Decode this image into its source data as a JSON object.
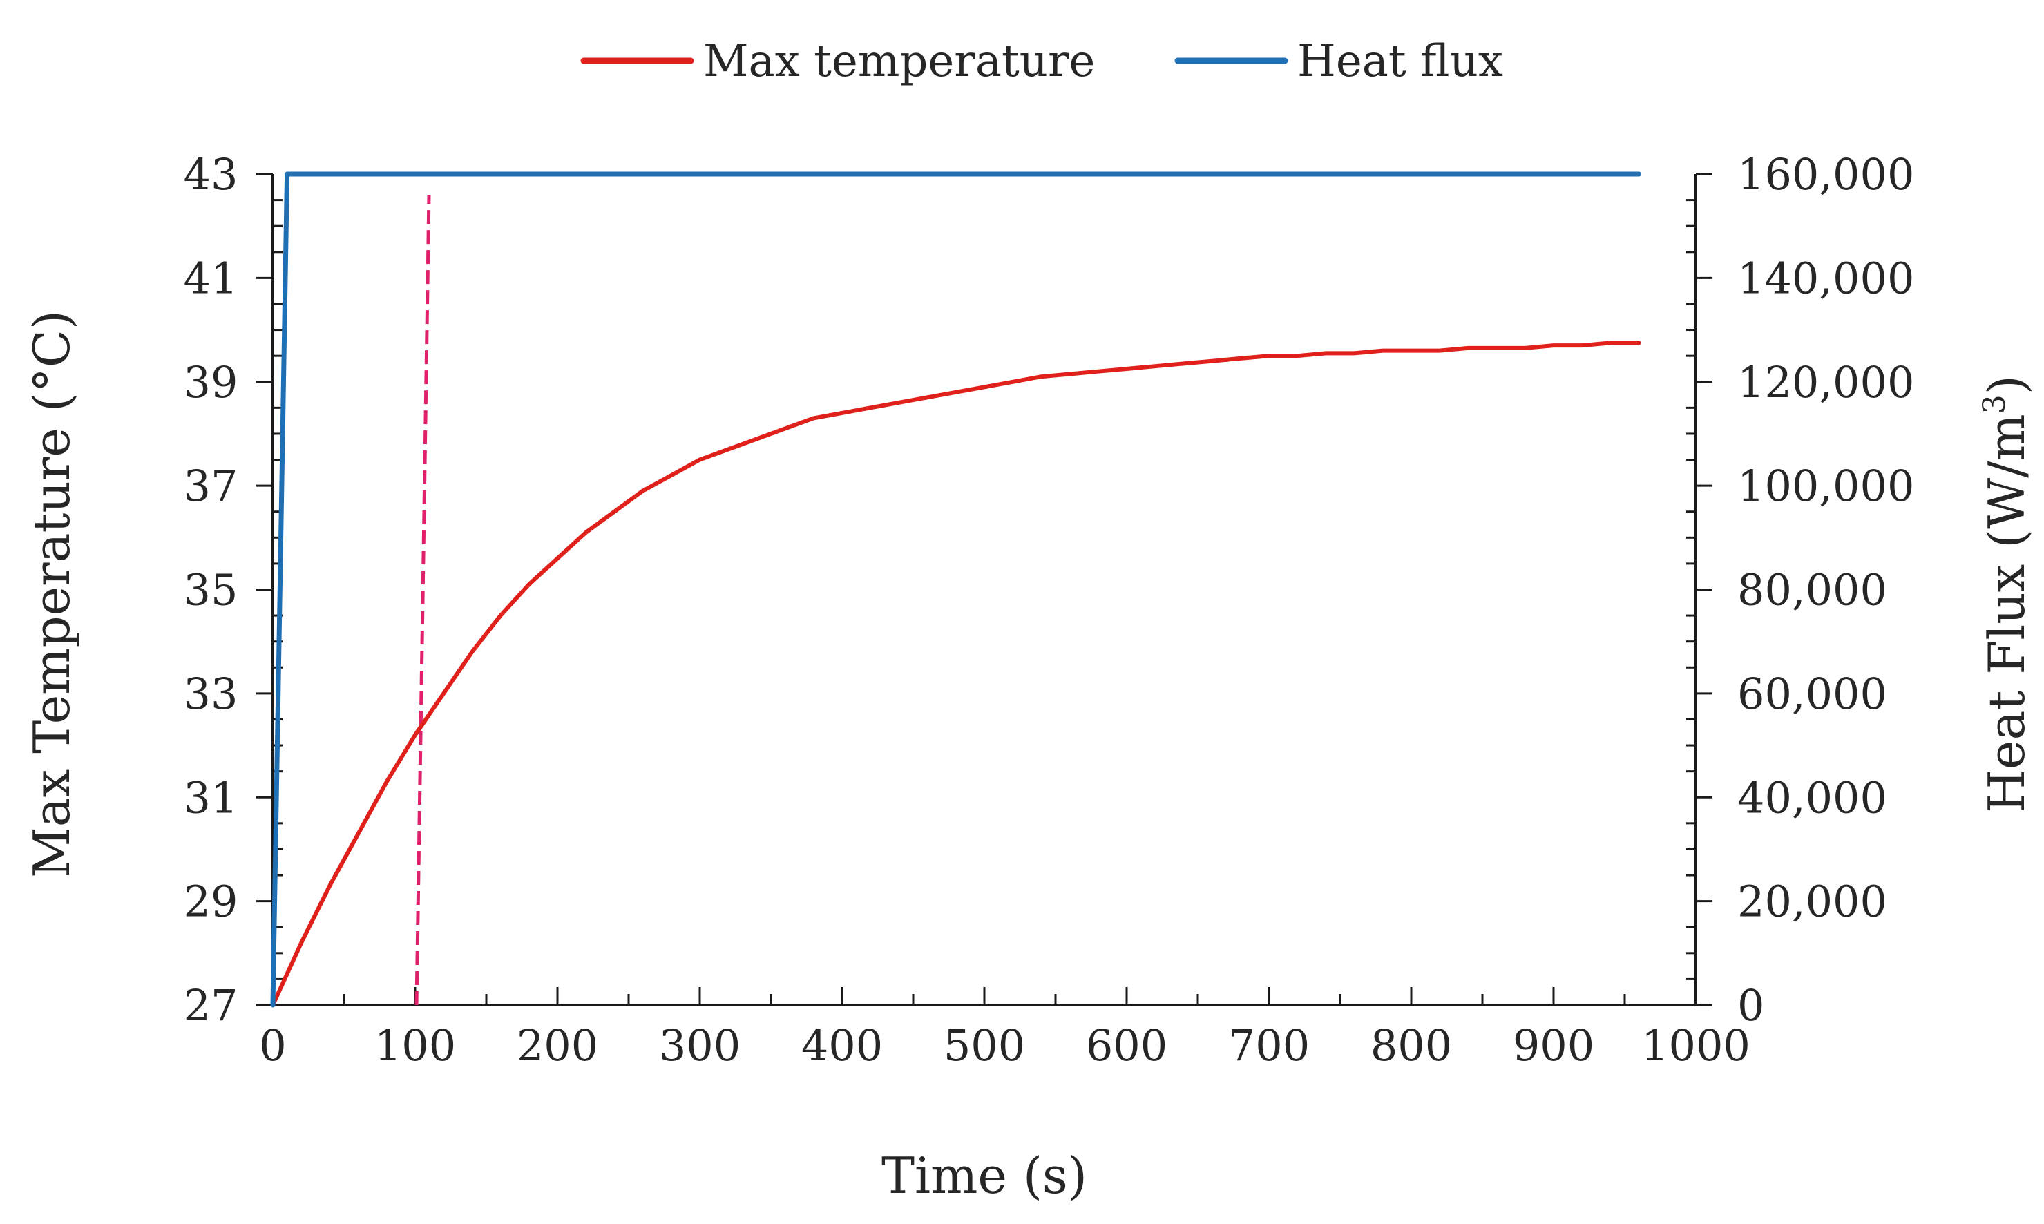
{
  "chart_data": {
    "type": "line",
    "title": "",
    "xlabel": "Time (s)",
    "ylabel": "Max Temperature (°C)",
    "y2label_base": "Heat Flux (W/m",
    "y2label_sup": "3",
    "y2label_end": ")",
    "xlim": [
      0,
      1000
    ],
    "ylim": [
      27,
      43
    ],
    "y2lim": [
      0,
      160000
    ],
    "x_major_ticks": [
      0,
      100,
      200,
      300,
      400,
      500,
      600,
      700,
      800,
      900,
      1000
    ],
    "x_tick_labels": [
      "0",
      "100",
      "200",
      "300",
      "400",
      "500",
      "600",
      "700",
      "800",
      "900",
      "1000"
    ],
    "y_major_ticks": [
      27,
      29,
      31,
      33,
      35,
      37,
      39,
      41,
      43
    ],
    "y_tick_labels": [
      "27",
      "29",
      "31",
      "33",
      "35",
      "37",
      "39",
      "41",
      "43"
    ],
    "y2_major_ticks": [
      0,
      20000,
      40000,
      60000,
      80000,
      100000,
      120000,
      140000,
      160000
    ],
    "y2_tick_labels": [
      "0",
      "20,000",
      "40,000",
      "60,000",
      "80,000",
      "100,000",
      "120,000",
      "140,000",
      "160,000"
    ],
    "legend_position": "top-center",
    "grid": false,
    "series": [
      {
        "name": "Max temperature",
        "axis": "left",
        "color": "#e0201b",
        "x": [
          0,
          20,
          40,
          60,
          80,
          100,
          120,
          140,
          160,
          180,
          200,
          220,
          240,
          260,
          280,
          300,
          320,
          340,
          360,
          380,
          400,
          420,
          440,
          460,
          480,
          500,
          520,
          540,
          560,
          580,
          600,
          620,
          640,
          660,
          680,
          700,
          720,
          740,
          760,
          780,
          800,
          820,
          840,
          860,
          880,
          900,
          920,
          940,
          960
        ],
        "values": [
          27.0,
          28.2,
          29.3,
          30.3,
          31.3,
          32.2,
          33.0,
          33.8,
          34.5,
          35.1,
          35.6,
          36.1,
          36.5,
          36.9,
          37.2,
          37.5,
          37.7,
          37.9,
          38.1,
          38.3,
          38.4,
          38.5,
          38.6,
          38.7,
          38.8,
          38.9,
          39.0,
          39.1,
          39.15,
          39.2,
          39.25,
          39.3,
          39.35,
          39.4,
          39.45,
          39.5,
          39.5,
          39.55,
          39.55,
          39.6,
          39.6,
          39.6,
          39.65,
          39.65,
          39.65,
          39.7,
          39.7,
          39.75,
          39.75
        ]
      },
      {
        "name": "Heat flux",
        "axis": "right",
        "color": "#1f6fb4",
        "x": [
          0,
          10,
          960
        ],
        "values": [
          0,
          160000,
          160000
        ]
      }
    ],
    "annotations": [
      {
        "type": "vline",
        "x": 100,
        "color": "#e0206a",
        "style": "dashed"
      }
    ]
  }
}
